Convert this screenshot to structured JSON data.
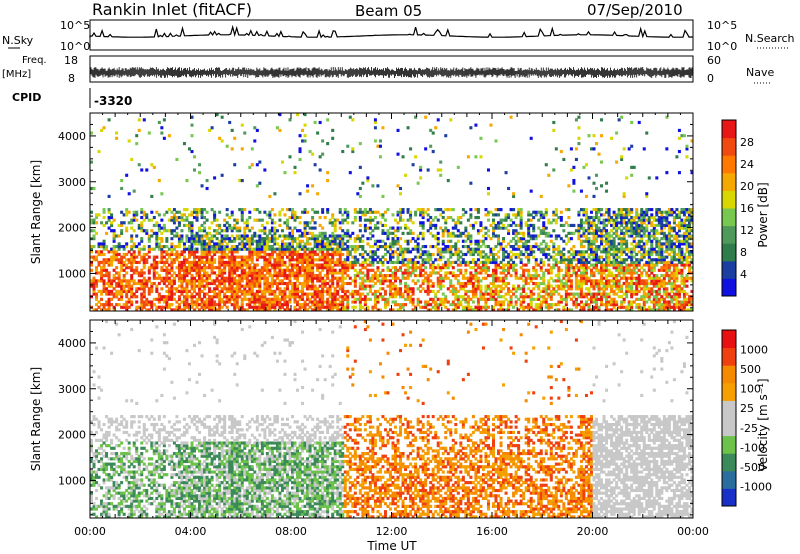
{
  "header": {
    "station": "Rankin Inlet (fitACF)",
    "beam": "Beam 05",
    "date": "07/Sep/2010"
  },
  "strips": {
    "nsky_label": "N.Sky",
    "nsky_ticks": [
      "10^5",
      "10^0"
    ],
    "nsearch_label": "N.Search",
    "nsearch_ticks": [
      "10^5",
      "10^0"
    ],
    "freq_label": "Freq.",
    "freq_unit": "[MHz]",
    "freq_ticks": [
      "18",
      "8"
    ],
    "nave_label": "Nave",
    "nave_ticks": [
      "60",
      "0"
    ],
    "cpid_label": "CPID",
    "cpid_value": "-3320"
  },
  "colors": {
    "power": [
      "#1010e0",
      "#1a3fa0",
      "#2e7d4a",
      "#4f9a5a",
      "#78c850",
      "#d8d800",
      "#f5a800",
      "#ff7800",
      "#f04a10",
      "#e81818"
    ],
    "velocity": [
      "#1830c8",
      "#2a6e9e",
      "#3c8a5a",
      "#6cc24a",
      "#c8c8c8",
      "#c8c8c8",
      "#f5a000",
      "#f58a00",
      "#f04010",
      "#e81010"
    ]
  },
  "chart_data": [
    {
      "type": "heatmap",
      "title": "",
      "xlabel": "Time UT",
      "ylabel": "Slant Range [km]",
      "x_ticks": [
        "00:00",
        "04:00",
        "08:00",
        "12:00",
        "16:00",
        "20:00",
        "00:00"
      ],
      "x_range_hours": [
        0,
        24
      ],
      "y_ticks": [
        1000,
        2000,
        3000,
        4000
      ],
      "ylim": [
        180,
        4500
      ],
      "colorbar_label": "Power [dB]",
      "colorbar_ticks": [
        "28",
        "24",
        "20",
        "16",
        "12",
        "8",
        "4"
      ],
      "colorbar_range": [
        0,
        30
      ],
      "colorbar_tick_values": [
        28,
        24,
        20,
        16,
        12,
        8,
        4
      ]
    },
    {
      "type": "heatmap",
      "title": "",
      "xlabel": "Time UT",
      "ylabel": "Slant Range [km]",
      "x_ticks": [
        "00:00",
        "04:00",
        "08:00",
        "12:00",
        "16:00",
        "20:00",
        "00:00"
      ],
      "x_range_hours": [
        0,
        24
      ],
      "y_ticks": [
        1000,
        2000,
        3000,
        4000
      ],
      "ylim": [
        180,
        4500
      ],
      "colorbar_label": "Velocity [m s⁻¹]",
      "colorbar_ticks": [
        "1000",
        "500",
        "100",
        "25",
        "-25",
        "-100",
        "-500",
        "-1000"
      ]
    }
  ]
}
